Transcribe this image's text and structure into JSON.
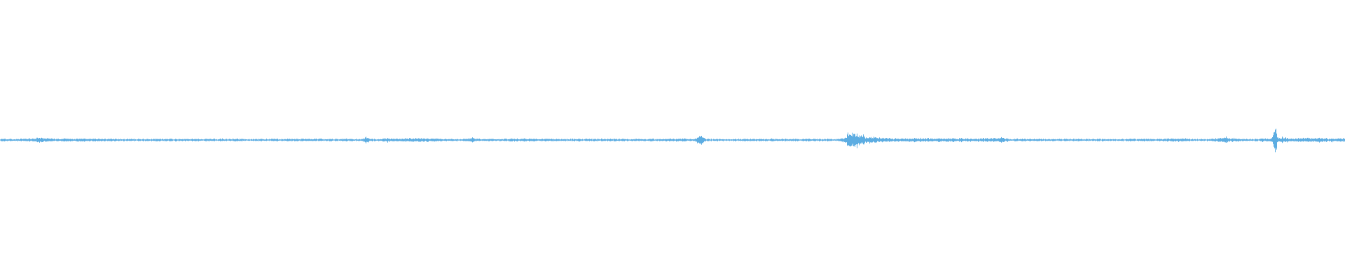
{
  "waveform": {
    "color": "#5DADE2",
    "background": "#FFFFFF"
  }
}
